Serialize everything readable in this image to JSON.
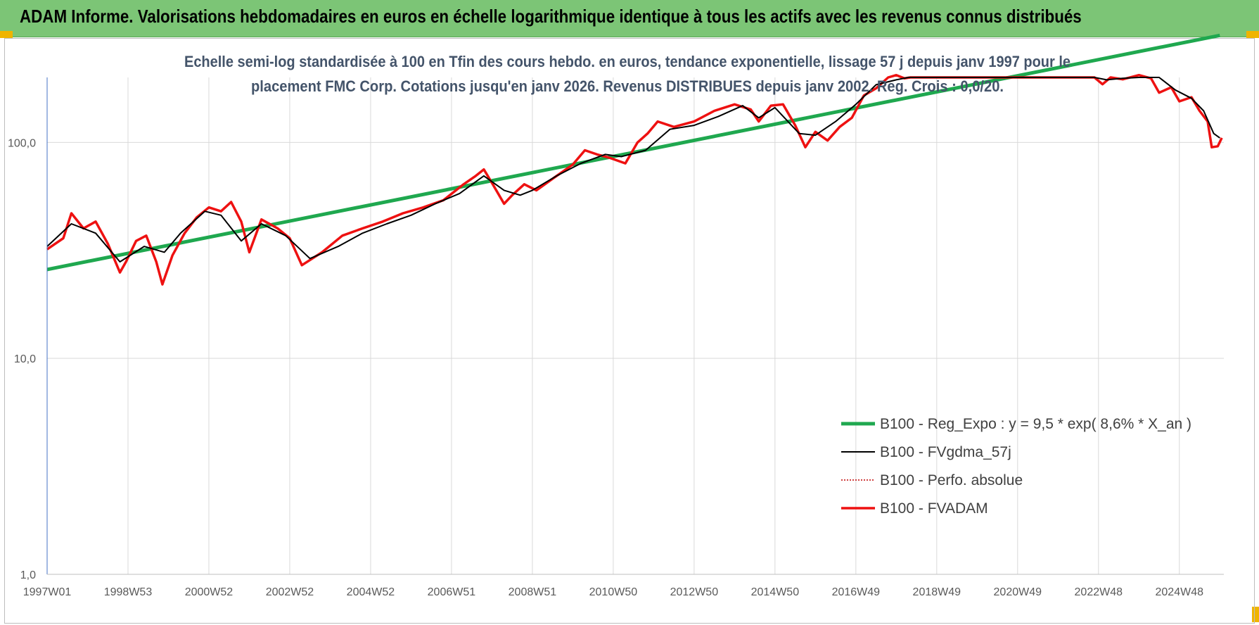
{
  "header": {
    "title": "ADAM Informe. Valorisations hebdomadaires en euros en échelle logarithmique identique à tous les actifs avec les revenus connus distribués"
  },
  "colors": {
    "header_bg": "#7cc576",
    "corner": "#f0b400",
    "regression": "#1fa84f",
    "fvgdma": "#000000",
    "perfo": "#c00000",
    "fvadam": "#ee1111",
    "grid": "#d9d9d9"
  },
  "chart_data": {
    "type": "line",
    "subtitle_line1": "Echelle semi-log standardisée à 100 en Tfin des cours hebdo. en euros, tendance exponentielle, lissage 57 j depuis janv 1997 pour le",
    "subtitle_line2": "placement FMC Corp. Cotations jusqu'en janv 2026.  Revenus DISTRIBUES depuis janv 2002. Reg. Crois : 0,0/20.",
    "y_scale": "log",
    "ylim": [
      1,
      200
    ],
    "y_ticks": [
      1,
      10,
      100
    ],
    "y_tick_labels": [
      "1,0",
      "10,0",
      "100,0"
    ],
    "xlim": [
      1997.0,
      2026.1
    ],
    "x_ticks": [
      1997.0,
      1999.0,
      2001.0,
      2003.0,
      2005.0,
      2007.0,
      2009.0,
      2011.0,
      2013.0,
      2015.0,
      2017.0,
      2019.0,
      2021.0,
      2023.0,
      2025.0
    ],
    "x_tick_labels": [
      "1997W01",
      "1998W53",
      "2000W52",
      "2002W52",
      "2004W52",
      "2006W51",
      "2008W51",
      "2010W50",
      "2012W50",
      "2014W50",
      "2016W49",
      "2018W49",
      "2020W49",
      "2022W48",
      "2024W48"
    ],
    "grid": true,
    "legend_position": "lower-right",
    "series": [
      {
        "name": "B100 - Reg_Expo : y = 9,5 * exp( 8,6% *  X_an )",
        "style": "thick-green",
        "x": [
          1997.0,
          2026.0
        ],
        "y": [
          25.8,
          313
        ]
      },
      {
        "name": "B100 - FVgdma_57j",
        "style": "thin-black",
        "x": [
          1997.0,
          1997.6,
          1998.2,
          1998.8,
          1999.4,
          1999.9,
          2000.3,
          2000.9,
          2001.3,
          2001.8,
          2002.3,
          2002.9,
          2003.5,
          2004.2,
          2004.8,
          2005.4,
          2006.0,
          2006.6,
          2007.2,
          2007.8,
          2008.3,
          2008.7,
          2009.0,
          2009.6,
          2010.2,
          2010.8,
          2011.2,
          2011.8,
          2012.4,
          2013.0,
          2013.6,
          2014.2,
          2014.6,
          2015.0,
          2015.6,
          2016.0,
          2016.5,
          2017.0,
          2017.5,
          2018.0,
          2018.3,
          2022.9,
          2023.2,
          2023.6,
          2024.0,
          2024.5,
          2024.9,
          2025.3,
          2025.6,
          2025.85,
          2026.0
        ],
        "y": [
          33,
          42,
          38,
          28,
          33,
          31,
          38,
          48,
          46,
          35,
          42,
          37,
          29,
          33,
          38,
          42,
          46,
          52,
          58,
          70,
          60,
          57,
          60,
          70,
          80,
          88,
          86,
          92,
          115,
          120,
          132,
          148,
          130,
          145,
          110,
          108,
          125,
          150,
          185,
          195,
          200,
          200,
          195,
          198,
          200,
          200,
          175,
          160,
          140,
          110,
          105
        ]
      },
      {
        "name": "B100 - Perfo. absolue",
        "style": "dotted-red",
        "x": [],
        "y": []
      },
      {
        "name": "B100 - FVADAM",
        "style": "thick-red",
        "x": [
          1997.0,
          1997.4,
          1997.6,
          1997.9,
          1998.2,
          1998.5,
          1998.8,
          1998.95,
          1999.2,
          1999.45,
          1999.7,
          1999.85,
          2000.1,
          2000.4,
          2000.7,
          2001.0,
          2001.3,
          2001.55,
          2001.8,
          2002.0,
          2002.3,
          2002.7,
          2003.0,
          2003.3,
          2003.8,
          2004.3,
          2004.8,
          2005.3,
          2005.8,
          2006.3,
          2006.8,
          2007.3,
          2007.6,
          2007.8,
          2008.0,
          2008.3,
          2008.5,
          2008.8,
          2009.1,
          2009.6,
          2010.0,
          2010.3,
          2010.6,
          2010.9,
          2011.3,
          2011.6,
          2011.85,
          2012.1,
          2012.5,
          2013.0,
          2013.5,
          2014.0,
          2014.4,
          2014.6,
          2014.9,
          2015.2,
          2015.5,
          2015.75,
          2016.0,
          2016.3,
          2016.6,
          2016.9,
          2017.2,
          2017.5,
          2017.8,
          2018.0,
          2018.2,
          2018.35,
          2022.9,
          2023.1,
          2023.3,
          2023.6,
          2024.0,
          2024.3,
          2024.5,
          2024.8,
          2025.0,
          2025.3,
          2025.5,
          2025.7,
          2025.8,
          2025.95,
          2026.05
        ],
        "y": [
          32,
          36,
          47,
          40,
          43,
          34,
          25,
          28,
          35,
          37,
          28,
          22,
          30,
          38,
          45,
          50,
          48,
          53,
          43,
          31,
          44,
          40,
          36,
          27,
          31,
          37,
          40,
          43,
          47,
          50,
          54,
          64,
          70,
          75,
          65,
          52,
          57,
          64,
          60,
          70,
          79,
          92,
          88,
          85,
          80,
          100,
          110,
          125,
          118,
          125,
          140,
          150,
          142,
          125,
          148,
          150,
          120,
          95,
          112,
          102,
          118,
          130,
          165,
          178,
          200,
          205,
          198,
          200,
          200,
          186,
          200,
          196,
          205,
          198,
          170,
          180,
          155,
          162,
          140,
          125,
          95,
          96,
          105
        ]
      }
    ]
  }
}
